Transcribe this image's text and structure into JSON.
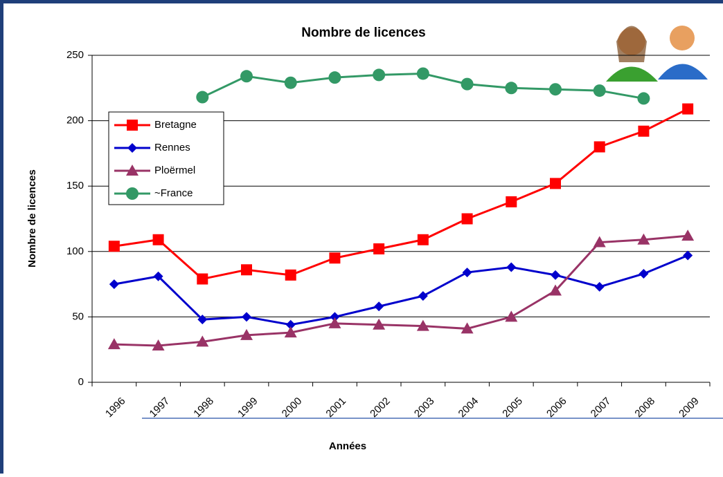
{
  "chart_data": {
    "type": "line",
    "title": "Nombre de licences",
    "x_label": "Années",
    "y_label": "Nombre de licences",
    "categories": [
      "1996",
      "1997",
      "1998",
      "1999",
      "2000",
      "2001",
      "2002",
      "2003",
      "2004",
      "2005",
      "2006",
      "2007",
      "2008",
      "2009"
    ],
    "series": [
      {
        "name": "Bretagne",
        "color": "#ff0000",
        "marker": "square",
        "values": [
          104,
          109,
          79,
          86,
          82,
          95,
          102,
          109,
          125,
          138,
          152,
          180,
          192,
          209
        ]
      },
      {
        "name": "Rennes",
        "color": "#0000cc",
        "marker": "diamond",
        "values": [
          75,
          81,
          48,
          50,
          44,
          50,
          58,
          66,
          84,
          88,
          82,
          73,
          83,
          97
        ]
      },
      {
        "name": "Ploërmel",
        "color": "#993366",
        "marker": "triangle",
        "values": [
          29,
          28,
          31,
          36,
          38,
          45,
          44,
          43,
          41,
          50,
          70,
          107,
          109,
          112
        ]
      },
      {
        "name": "~France",
        "color": "#339966",
        "marker": "circle",
        "values": [
          null,
          null,
          218,
          234,
          229,
          233,
          235,
          236,
          228,
          225,
          224,
          223,
          217,
          null
        ]
      }
    ],
    "ylim": [
      0,
      250
    ],
    "yticks": [
      0,
      50,
      100,
      150,
      200,
      250
    ],
    "grid": true
  }
}
